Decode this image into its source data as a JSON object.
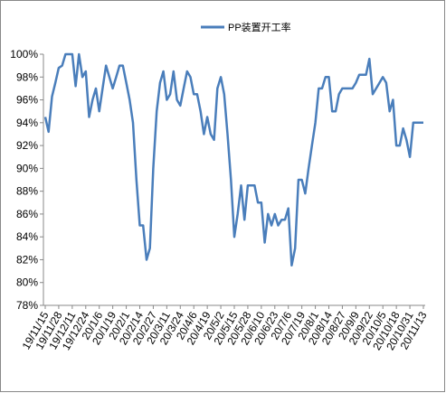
{
  "chart_data": {
    "type": "line",
    "categories": [
      "19/11/15",
      null,
      null,
      null,
      "19/11/28",
      null,
      null,
      null,
      "19/12/11",
      null,
      null,
      null,
      "19/12/24",
      null,
      null,
      null,
      "20/1/6",
      null,
      null,
      null,
      "20/1/19",
      null,
      null,
      null,
      "20/2/1",
      null,
      null,
      null,
      "20/2/14",
      null,
      null,
      null,
      "20/2/27",
      null,
      null,
      null,
      "20/3/11",
      null,
      null,
      null,
      "20/3/24",
      null,
      null,
      null,
      "20/4/6",
      null,
      null,
      null,
      "20/4/19",
      null,
      null,
      null,
      "20/5/2",
      null,
      null,
      null,
      "20/5/15",
      null,
      null,
      null,
      "20/5/28",
      null,
      null,
      null,
      "20/6/10",
      null,
      null,
      null,
      "20/6/23",
      null,
      null,
      null,
      "20/7/6",
      null,
      null,
      null,
      "20/7/19",
      null,
      null,
      null,
      "20/8/1",
      null,
      null,
      null,
      "20/8/14",
      null,
      null,
      null,
      "20/8/27",
      null,
      null,
      null,
      "20/9/9",
      null,
      null,
      null,
      "20/9/22",
      null,
      null,
      null,
      "20/10/5",
      null,
      null,
      null,
      "20/10/18",
      null,
      null,
      null,
      "20/10/31",
      null,
      null,
      null,
      "20/11/13"
    ],
    "series": [
      {
        "name": "PP装置开工率",
        "color": "#4a7ebb",
        "values": [
          94.5,
          93.2,
          96.3,
          97.5,
          98.8,
          99,
          100,
          100,
          100,
          97.2,
          100,
          98,
          98.5,
          94.5,
          96,
          97,
          95,
          97,
          99,
          98,
          97,
          98,
          99,
          99,
          97.5,
          96,
          94,
          89,
          85,
          85,
          82,
          83,
          90,
          95,
          97.5,
          98.5,
          96,
          96.5,
          98.5,
          96,
          95.5,
          97,
          98.5,
          98,
          96.5,
          96.5,
          95,
          93,
          94.5,
          93,
          92.5,
          97,
          98,
          96.5,
          93,
          89,
          84,
          86,
          88.5,
          85.5,
          88.5,
          88.5,
          88.5,
          87,
          87,
          83.5,
          86,
          85,
          86,
          85,
          85.5,
          85.5,
          86.5,
          81.5,
          83,
          89,
          89,
          87.8,
          90,
          92,
          94,
          97,
          97,
          98,
          98,
          95,
          95,
          96.5,
          97,
          97,
          97,
          97,
          97.5,
          98.2,
          98.2,
          98.2,
          99.6,
          96.5,
          97,
          97.5,
          98,
          97.5,
          95,
          96,
          92,
          92,
          93.5,
          92.5,
          91,
          94,
          94,
          94,
          94
        ]
      }
    ],
    "ylim": [
      78,
      100
    ],
    "yticks": [
      {
        "value": 78,
        "label": "78%"
      },
      {
        "value": 80,
        "label": "80%"
      },
      {
        "value": 82,
        "label": "82%"
      },
      {
        "value": 84,
        "label": "84%"
      },
      {
        "value": 86,
        "label": "86%"
      },
      {
        "value": 88,
        "label": "88%"
      },
      {
        "value": 90,
        "label": "90%"
      },
      {
        "value": 92,
        "label": "92%"
      },
      {
        "value": 94,
        "label": "94%"
      },
      {
        "value": 96,
        "label": "96%"
      },
      {
        "value": 98,
        "label": "98%"
      },
      {
        "value": 100,
        "label": "100%"
      }
    ],
    "grid": false
  }
}
